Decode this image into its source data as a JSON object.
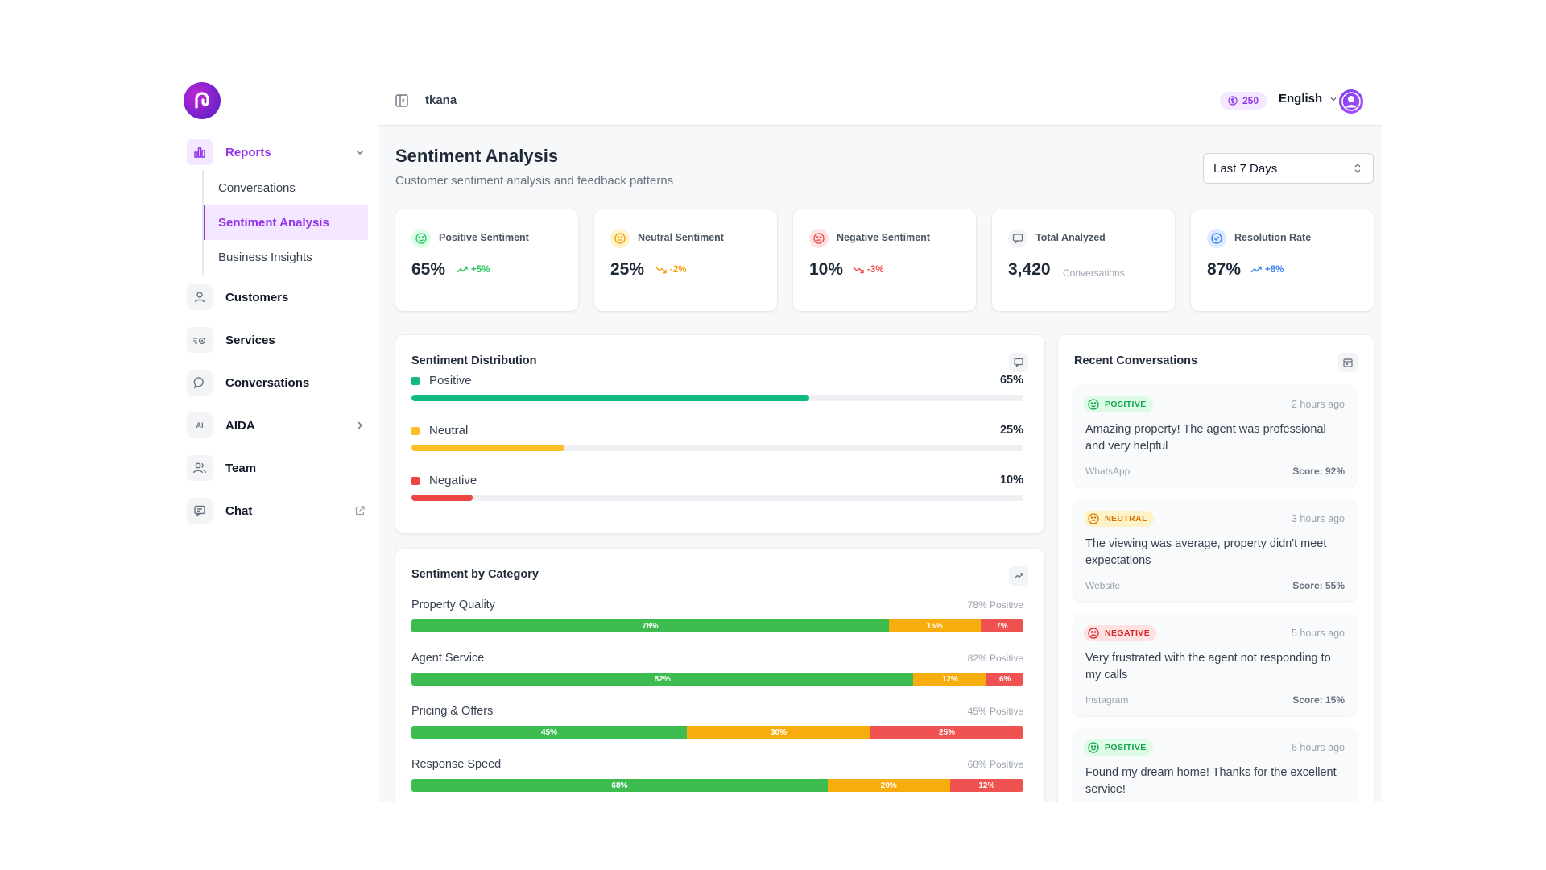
{
  "app": {
    "workspace": "tkana"
  },
  "topbar": {
    "credits": "250",
    "language": "English"
  },
  "sidebar": {
    "reports_label": "Reports",
    "sub_items": [
      "Conversations",
      "Sentiment Analysis",
      "Business Insights"
    ],
    "items": [
      "Customers",
      "Services",
      "Conversations",
      "AIDA",
      "Team",
      "Chat"
    ],
    "aida_icon_text": "AI"
  },
  "page": {
    "title": "Sentiment Analysis",
    "subtitle": "Customer sentiment analysis and feedback patterns",
    "range": "Last 7 Days"
  },
  "kpis": [
    {
      "label": "Positive Sentiment",
      "value": "65%",
      "trend": "+5%",
      "color": "#22c55e"
    },
    {
      "label": "Neutral Sentiment",
      "value": "25%",
      "trend": "-2%",
      "color": "#f59e0b"
    },
    {
      "label": "Negative Sentiment",
      "value": "10%",
      "trend": "-3%",
      "color": "#ef4444"
    },
    {
      "label": "Total Analyzed",
      "value": "3,420",
      "sub": "Conversations"
    },
    {
      "label": "Resolution Rate",
      "value": "87%",
      "trend": "+8%",
      "color": "#3b82f6"
    }
  ],
  "distribution": {
    "title": "Sentiment Distribution",
    "rows": [
      {
        "label": "Positive",
        "pct": "65%",
        "value": 65,
        "color": "#10b981"
      },
      {
        "label": "Neutral",
        "pct": "25%",
        "value": 25,
        "color": "#fbbf24"
      },
      {
        "label": "Negative",
        "pct": "10%",
        "value": 10,
        "color": "#ef4444"
      }
    ]
  },
  "category": {
    "title": "Sentiment by Category",
    "rows": [
      {
        "label": "Property Quality",
        "positive_text": "78% Positive",
        "pos": 78,
        "neu": 15,
        "neg": 7,
        "pos_label": "78%",
        "neu_label": "15%",
        "neg_label": "7%"
      },
      {
        "label": "Agent Service",
        "positive_text": "82% Positive",
        "pos": 82,
        "neu": 12,
        "neg": 6,
        "pos_label": "82%",
        "neu_label": "12%",
        "neg_label": "6%"
      },
      {
        "label": "Pricing & Offers",
        "positive_text": "45% Positive",
        "pos": 45,
        "neu": 30,
        "neg": 25,
        "pos_label": "45%",
        "neu_label": "30%",
        "neg_label": "25%"
      },
      {
        "label": "Response Speed",
        "positive_text": "68% Positive",
        "pos": 68,
        "neu": 20,
        "neg": 12,
        "pos_label": "68%",
        "neu_label": "20%",
        "neg_label": "12%"
      }
    ],
    "colors": {
      "pos": "#3dbc50",
      "neu": "#f8ad0e",
      "neg": "#f05252"
    }
  },
  "recent": {
    "title": "Recent Conversations",
    "items": [
      {
        "badge": "POSITIVE",
        "time": "2 hours ago",
        "message": "Amazing property! The agent was professional and very helpful",
        "source": "WhatsApp",
        "score": "Score: 92%",
        "color": "#16a34a",
        "bg": "#dcfce7"
      },
      {
        "badge": "NEUTRAL",
        "time": "3 hours ago",
        "message": "The viewing was average, property didn't meet expectations",
        "source": "Website",
        "score": "Score: 55%",
        "color": "#d97706",
        "bg": "#fef3c7"
      },
      {
        "badge": "NEGATIVE",
        "time": "5 hours ago",
        "message": "Very frustrated with the agent not responding to my calls",
        "source": "Instagram",
        "score": "Score: 15%",
        "color": "#dc2626",
        "bg": "#fee2e2"
      },
      {
        "badge": "POSITIVE",
        "time": "6 hours ago",
        "message": "Found my dream home! Thanks for the excellent service!",
        "source": "",
        "score": "",
        "color": "#16a34a",
        "bg": "#dcfce7"
      }
    ]
  }
}
